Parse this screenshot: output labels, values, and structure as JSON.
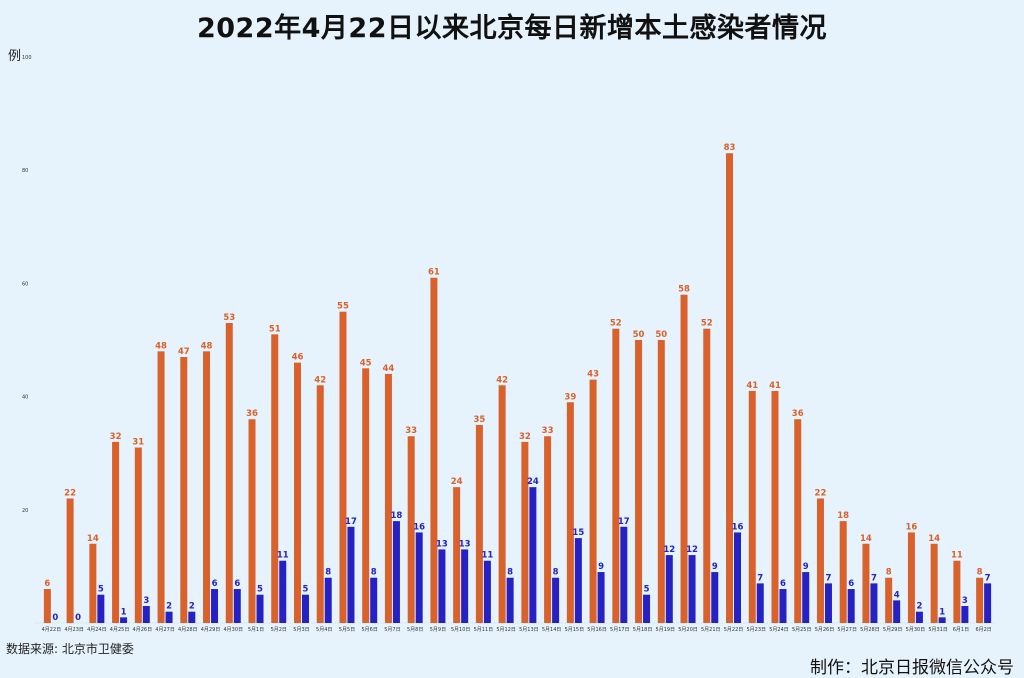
{
  "title": "2022年4月22日以来北京每日新增本土感染者情况",
  "source": "数据来源: 北京市卫健委",
  "credit": "制作：北京日报微信公众号",
  "colors": {
    "orange": "#d9612b",
    "blue": "#2621c2",
    "background": "#e6f3fc",
    "axis_text": "#333333"
  },
  "chart_data": {
    "type": "bar",
    "title": "2022年4月22日以来北京每日新增本土感染者情况",
    "ylabel": "例",
    "xlabel": "",
    "ylim": [
      0,
      100
    ],
    "yticks": [
      0,
      20,
      40,
      60,
      80,
      100
    ],
    "grid": false,
    "legend": "none",
    "categories": [
      "4月22日",
      "4月23日",
      "4月24日",
      "4月25日",
      "4月26日",
      "4月27日",
      "4月28日",
      "4月29日",
      "4月30日",
      "5月1日",
      "5月2日",
      "5月3日",
      "5月4日",
      "5月5日",
      "5月6日",
      "5月7日",
      "5月8日",
      "5月9日",
      "5月10日",
      "5月11日",
      "5月12日",
      "5月13日",
      "5月14日",
      "5月15日",
      "5月16日",
      "5月17日",
      "5月18日",
      "5月19日",
      "5月20日",
      "5月21日",
      "5月22日",
      "5月23日",
      "5月24日",
      "5月25日",
      "5月26日",
      "5月27日",
      "5月28日",
      "5月29日",
      "5月30日",
      "5月31日",
      "6月1日",
      "6月2日"
    ],
    "series": [
      {
        "color": "#d9612b",
        "values": [
          6,
          22,
          14,
          32,
          31,
          48,
          47,
          48,
          53,
          36,
          51,
          46,
          42,
          55,
          45,
          44,
          33,
          61,
          24,
          35,
          42,
          32,
          33,
          39,
          43,
          52,
          50,
          50,
          58,
          52,
          83,
          41,
          41,
          36,
          22,
          18,
          14,
          8,
          16,
          14,
          11,
          8
        ]
      },
      {
        "color": "#2621c2",
        "values": [
          0,
          0,
          5,
          1,
          3,
          2,
          2,
          6,
          6,
          5,
          11,
          5,
          8,
          17,
          8,
          18,
          16,
          13,
          13,
          11,
          8,
          24,
          8,
          15,
          9,
          17,
          5,
          12,
          12,
          9,
          16,
          7,
          6,
          9,
          7,
          6,
          7,
          4,
          2,
          1,
          3,
          7
        ]
      }
    ]
  }
}
